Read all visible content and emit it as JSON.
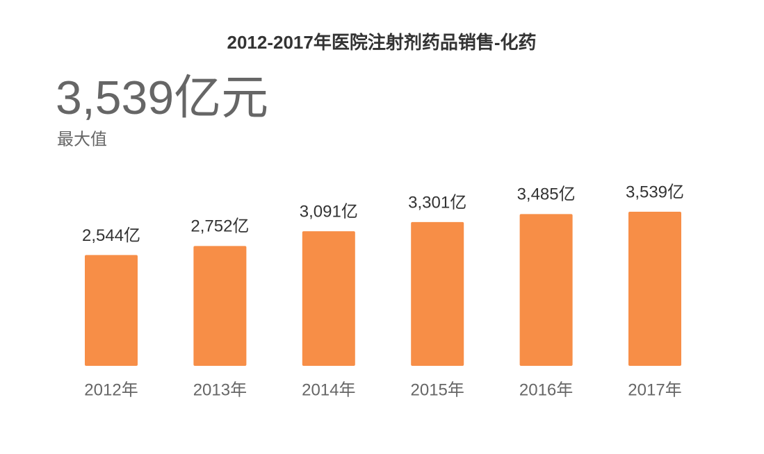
{
  "chart_data": {
    "type": "bar",
    "title": "2012-2017年医院注射剂药品销售-化药",
    "headline": "3,539亿元",
    "headline_caption": "最大值",
    "categories": [
      "2012年",
      "2013年",
      "2014年",
      "2015年",
      "2016年",
      "2017年"
    ],
    "values": [
      2544,
      2752,
      3091,
      3301,
      3485,
      3539
    ],
    "value_labels": [
      "2,544亿",
      "2,752亿",
      "3,091亿",
      "3,301亿",
      "3,485亿",
      "3,539亿"
    ],
    "color": "#f78e47"
  }
}
